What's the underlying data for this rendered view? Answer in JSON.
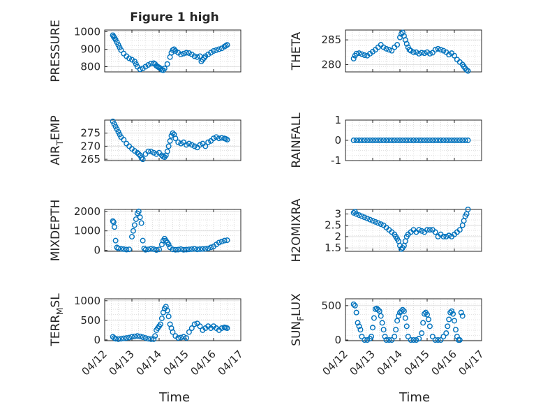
{
  "figure": {
    "title": "Figure 1 high",
    "x_date_ticks": [
      "04/12",
      "04/13",
      "04/14",
      "04/15",
      "04/16",
      "04/17"
    ],
    "xlabel": "Time"
  },
  "colors": {
    "marker": "#0072BD",
    "axis": "#262626",
    "grid": "#c8c8c8",
    "background": "#ffffff"
  },
  "chart_data": [
    {
      "type": "scatter",
      "id": "pressure",
      "ylabel": "PRESSURE",
      "ylabel_sub": "",
      "ylim": [
        770,
        1010
      ],
      "yticks": [
        "1000",
        "900",
        "800"
      ],
      "ytick_values": [
        1000,
        900,
        800
      ],
      "xlim": [
        0,
        5
      ],
      "title": "Figure 1 high",
      "x": [
        0.3,
        0.33,
        0.36,
        0.4,
        0.45,
        0.5,
        0.55,
        0.6,
        0.7,
        0.8,
        0.9,
        1.0,
        1.1,
        1.15,
        1.2,
        1.3,
        1.4,
        1.5,
        1.6,
        1.7,
        1.8,
        1.85,
        1.9,
        1.95,
        2.0,
        2.05,
        2.1,
        2.15,
        2.2,
        2.3,
        2.4,
        2.45,
        2.5,
        2.55,
        2.6,
        2.7,
        2.8,
        2.9,
        3.0,
        3.1,
        3.2,
        3.3,
        3.4,
        3.5,
        3.55,
        3.6,
        3.65,
        3.7,
        3.8,
        3.9,
        4.0,
        4.1,
        4.2,
        4.3,
        4.4,
        4.45,
        4.5
      ],
      "y": [
        980,
        972,
        965,
        955,
        940,
        925,
        910,
        895,
        875,
        860,
        848,
        840,
        830,
        815,
        800,
        785,
        790,
        800,
        810,
        818,
        820,
        815,
        805,
        800,
        795,
        790,
        782,
        780,
        790,
        815,
        855,
        880,
        895,
        900,
        890,
        880,
        870,
        875,
        880,
        878,
        870,
        860,
        855,
        860,
        830,
        840,
        850,
        860,
        870,
        880,
        890,
        895,
        900,
        905,
        915,
        920,
        925
      ]
    },
    {
      "type": "scatter",
      "id": "theta",
      "ylabel": "THETA",
      "ylabel_sub": "",
      "ylim": [
        278.5,
        287
      ],
      "yticks": [
        "285",
        "280"
      ],
      "ytick_values": [
        285,
        280
      ],
      "xlim": [
        0,
        5
      ],
      "x": [
        0.3,
        0.35,
        0.4,
        0.5,
        0.6,
        0.7,
        0.8,
        0.9,
        1.0,
        1.1,
        1.2,
        1.3,
        1.4,
        1.5,
        1.6,
        1.7,
        1.8,
        1.9,
        2.0,
        2.05,
        2.1,
        2.15,
        2.2,
        2.25,
        2.3,
        2.35,
        2.4,
        2.5,
        2.6,
        2.7,
        2.8,
        2.9,
        3.0,
        3.1,
        3.2,
        3.3,
        3.4,
        3.5,
        3.6,
        3.7,
        3.8,
        3.9,
        4.0,
        4.1,
        4.2,
        4.3,
        4.35,
        4.4,
        4.45,
        4.5
      ],
      "y": [
        281.2,
        281.8,
        282.2,
        282.3,
        282.1,
        281.9,
        281.8,
        282.2,
        282.6,
        283.0,
        283.5,
        284.0,
        283.5,
        283.2,
        283.0,
        282.8,
        283.5,
        284.0,
        285.5,
        286.2,
        286.5,
        285.8,
        285.0,
        284.2,
        283.5,
        283.0,
        282.8,
        282.5,
        282.5,
        282.2,
        282.4,
        282.3,
        282.5,
        282.2,
        282.4,
        283.0,
        283.2,
        283.0,
        282.8,
        282.5,
        282.0,
        282.3,
        281.8,
        281.0,
        280.5,
        280.0,
        279.6,
        279.2,
        278.9,
        278.7
      ]
    },
    {
      "type": "scatter",
      "id": "air_temp",
      "ylabel": "AIR",
      "ylabel_sub": "T",
      "ylabel_suffix": "EMP",
      "ylim": [
        264.5,
        280
      ],
      "yticks": [
        "275",
        "270",
        "265"
      ],
      "ytick_values": [
        275,
        270,
        265
      ],
      "xlim": [
        0,
        5
      ],
      "x": [
        0.3,
        0.35,
        0.4,
        0.45,
        0.5,
        0.55,
        0.6,
        0.7,
        0.8,
        0.9,
        1.0,
        1.1,
        1.2,
        1.25,
        1.3,
        1.35,
        1.4,
        1.5,
        1.6,
        1.7,
        1.8,
        1.9,
        2.0,
        2.1,
        2.15,
        2.2,
        2.25,
        2.3,
        2.35,
        2.4,
        2.45,
        2.5,
        2.55,
        2.6,
        2.7,
        2.8,
        2.9,
        3.0,
        3.1,
        3.2,
        3.3,
        3.4,
        3.5,
        3.6,
        3.7,
        3.8,
        3.9,
        4.0,
        4.1,
        4.2,
        4.3,
        4.4,
        4.45,
        4.5
      ],
      "y": [
        279.5,
        278.5,
        277.5,
        276.5,
        275.5,
        274.5,
        273.5,
        272.5,
        271.0,
        270.0,
        269.0,
        268.2,
        267.5,
        267.0,
        266.5,
        265.5,
        265.0,
        267.0,
        268.0,
        268.0,
        267.5,
        267.0,
        267.5,
        266.5,
        266.0,
        265.8,
        266.5,
        268.0,
        270.0,
        272.0,
        274.0,
        275.0,
        274.5,
        273.0,
        271.5,
        271.0,
        271.5,
        270.5,
        271.0,
        270.5,
        270.0,
        269.5,
        270.5,
        271.0,
        270.0,
        271.5,
        272.0,
        273.0,
        273.5,
        273.0,
        273.2,
        273.0,
        272.8,
        272.5
      ]
    },
    {
      "type": "scatter",
      "id": "rainfall",
      "ylabel": "RAINFALL",
      "ylabel_sub": "",
      "ylim": [
        -1,
        1
      ],
      "yticks": [
        "1",
        "0",
        "-1"
      ],
      "ytick_values": [
        1,
        0,
        -1
      ],
      "xlim": [
        0,
        5
      ],
      "x": [
        0.3,
        0.4,
        0.5,
        0.6,
        0.7,
        0.8,
        0.9,
        1.0,
        1.1,
        1.2,
        1.3,
        1.4,
        1.5,
        1.6,
        1.7,
        1.8,
        1.9,
        2.0,
        2.1,
        2.2,
        2.3,
        2.4,
        2.5,
        2.6,
        2.7,
        2.8,
        2.9,
        3.0,
        3.1,
        3.2,
        3.3,
        3.4,
        3.5,
        3.6,
        3.7,
        3.8,
        3.9,
        4.0,
        4.1,
        4.2,
        4.3,
        4.4,
        4.5
      ],
      "y": [
        0,
        0,
        0,
        0,
        0,
        0,
        0,
        0,
        0,
        0,
        0,
        0,
        0,
        0,
        0,
        0,
        0,
        0,
        0,
        0,
        0,
        0,
        0,
        0,
        0,
        0,
        0,
        0,
        0,
        0,
        0,
        0,
        0,
        0,
        0,
        0,
        0,
        0,
        0,
        0,
        0,
        0,
        0
      ]
    },
    {
      "type": "scatter",
      "id": "mixdepth",
      "ylabel": "MIXDEPTH",
      "ylabel_sub": "",
      "ylim": [
        -50,
        2100
      ],
      "yticks": [
        "2000",
        "1000",
        "0"
      ],
      "ytick_values": [
        2000,
        1000,
        0
      ],
      "xlim": [
        0,
        5
      ],
      "x": [
        0.3,
        0.33,
        0.36,
        0.4,
        0.45,
        0.5,
        0.6,
        0.7,
        0.8,
        0.9,
        1.0,
        1.05,
        1.1,
        1.15,
        1.2,
        1.25,
        1.3,
        1.35,
        1.4,
        1.45,
        1.5,
        1.6,
        1.7,
        1.8,
        1.9,
        2.0,
        2.1,
        2.15,
        2.2,
        2.25,
        2.3,
        2.35,
        2.4,
        2.5,
        2.6,
        2.7,
        2.8,
        2.9,
        3.0,
        3.1,
        3.2,
        3.3,
        3.4,
        3.5,
        3.6,
        3.7,
        3.8,
        3.9,
        4.0,
        4.1,
        4.2,
        4.3,
        4.4,
        4.5
      ],
      "y": [
        1500,
        1450,
        1200,
        500,
        150,
        100,
        80,
        60,
        40,
        50,
        700,
        1000,
        1300,
        1600,
        1900,
        2000,
        1700,
        1400,
        500,
        100,
        30,
        50,
        80,
        60,
        20,
        50,
        300,
        500,
        600,
        500,
        400,
        300,
        150,
        50,
        30,
        40,
        60,
        30,
        40,
        50,
        60,
        80,
        50,
        60,
        70,
        80,
        100,
        150,
        200,
        300,
        400,
        450,
        500,
        520
      ]
    },
    {
      "type": "scatter",
      "id": "h2omixra",
      "ylabel": "H2OMIXRA",
      "ylabel_sub": "",
      "ylim": [
        1.35,
        3.2
      ],
      "yticks": [
        "3",
        "2.5",
        "2",
        "1.5"
      ],
      "ytick_values": [
        3,
        2.5,
        2,
        1.5
      ],
      "xlim": [
        0,
        5
      ],
      "x": [
        0.3,
        0.35,
        0.4,
        0.5,
        0.6,
        0.7,
        0.8,
        0.9,
        1.0,
        1.1,
        1.2,
        1.3,
        1.4,
        1.5,
        1.6,
        1.7,
        1.8,
        1.85,
        1.9,
        1.95,
        2.0,
        2.05,
        2.1,
        2.15,
        2.2,
        2.25,
        2.3,
        2.4,
        2.5,
        2.6,
        2.7,
        2.8,
        2.9,
        3.0,
        3.1,
        3.2,
        3.3,
        3.4,
        3.5,
        3.6,
        3.7,
        3.8,
        3.9,
        4.0,
        4.1,
        4.2,
        4.3,
        4.35,
        4.4,
        4.45,
        4.5
      ],
      "y": [
        3.05,
        3.1,
        3.0,
        2.95,
        2.9,
        2.85,
        2.8,
        2.75,
        2.7,
        2.65,
        2.6,
        2.55,
        2.5,
        2.4,
        2.3,
        2.2,
        2.1,
        2.0,
        1.9,
        1.8,
        1.6,
        1.45,
        1.5,
        1.6,
        1.8,
        2.0,
        2.1,
        2.2,
        2.3,
        2.2,
        2.3,
        2.25,
        2.2,
        2.3,
        2.3,
        2.3,
        2.2,
        2.0,
        2.1,
        2.0,
        2.0,
        2.05,
        2.0,
        2.1,
        2.2,
        2.3,
        2.5,
        2.7,
        2.9,
        3.0,
        3.2
      ]
    },
    {
      "type": "scatter",
      "id": "terr_msl",
      "ylabel": "TERR",
      "ylabel_sub": "M",
      "ylabel_suffix": "SL",
      "ylim": [
        -20,
        1050
      ],
      "yticks": [
        "1000",
        "500",
        "0"
      ],
      "ytick_values": [
        1000,
        500,
        0
      ],
      "xlim": [
        0,
        5
      ],
      "x": [
        0.3,
        0.35,
        0.4,
        0.5,
        0.6,
        0.7,
        0.8,
        0.9,
        1.0,
        1.1,
        1.2,
        1.3,
        1.4,
        1.5,
        1.6,
        1.7,
        1.8,
        1.85,
        1.9,
        1.95,
        2.0,
        2.05,
        2.1,
        2.15,
        2.2,
        2.25,
        2.3,
        2.35,
        2.4,
        2.45,
        2.5,
        2.6,
        2.7,
        2.8,
        2.9,
        3.0,
        3.1,
        3.2,
        3.3,
        3.4,
        3.5,
        3.6,
        3.7,
        3.8,
        3.9,
        4.0,
        4.1,
        4.2,
        4.3,
        4.4,
        4.45,
        4.5
      ],
      "y": [
        80,
        50,
        30,
        20,
        30,
        40,
        50,
        60,
        80,
        90,
        100,
        90,
        70,
        50,
        30,
        20,
        20,
        100,
        250,
        300,
        350,
        400,
        550,
        700,
        800,
        850,
        750,
        600,
        400,
        300,
        200,
        100,
        50,
        60,
        80,
        50,
        200,
        300,
        400,
        420,
        350,
        250,
        300,
        350,
        300,
        350,
        300,
        250,
        300,
        320,
        310,
        300
      ]
    },
    {
      "type": "scatter",
      "id": "sun_flux",
      "ylabel": "SUN",
      "ylabel_sub": "F",
      "ylabel_suffix": "LUX",
      "ylim": [
        -10,
        600
      ],
      "yticks": [
        "500",
        "0"
      ],
      "ytick_values": [
        500,
        0
      ],
      "xlim": [
        0,
        5
      ],
      "x": [
        0.3,
        0.35,
        0.4,
        0.45,
        0.5,
        0.55,
        0.6,
        0.7,
        0.8,
        0.9,
        0.95,
        1.0,
        1.05,
        1.1,
        1.15,
        1.2,
        1.25,
        1.3,
        1.35,
        1.4,
        1.45,
        1.5,
        1.6,
        1.7,
        1.8,
        1.85,
        1.9,
        1.95,
        2.0,
        2.05,
        2.1,
        2.15,
        2.2,
        2.25,
        2.3,
        2.4,
        2.5,
        2.6,
        2.7,
        2.8,
        2.85,
        2.9,
        2.95,
        3.0,
        3.05,
        3.1,
        3.2,
        3.3,
        3.4,
        3.5,
        3.6,
        3.7,
        3.75,
        3.8,
        3.85,
        3.9,
        3.95,
        4.0,
        4.05,
        4.1,
        4.15,
        4.2,
        4.25,
        4.3
      ],
      "y": [
        520,
        500,
        400,
        250,
        200,
        150,
        50,
        0,
        0,
        20,
        50,
        180,
        320,
        450,
        460,
        440,
        420,
        350,
        250,
        150,
        50,
        0,
        0,
        0,
        50,
        150,
        280,
        350,
        400,
        420,
        440,
        420,
        320,
        200,
        50,
        0,
        0,
        0,
        20,
        100,
        250,
        380,
        400,
        370,
        300,
        200,
        50,
        0,
        0,
        0,
        50,
        100,
        200,
        300,
        400,
        420,
        380,
        280,
        150,
        50,
        0,
        0,
        400,
        350
      ]
    }
  ]
}
